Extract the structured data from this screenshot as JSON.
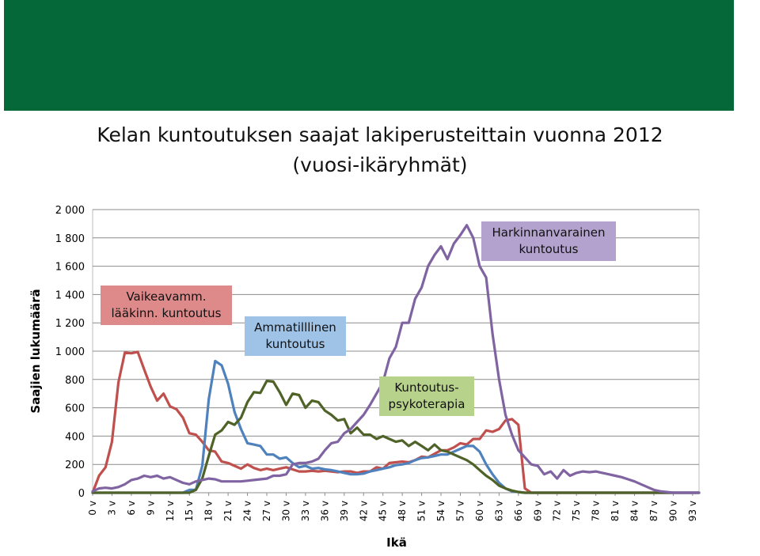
{
  "title": "Kelan kuntoutuksen saajat lakiperusteittain vuonna 2012  (vuosi-ikäryhmät)",
  "colors": {
    "banner": "#056839"
  },
  "chart_data": {
    "type": "line",
    "title": "Kelan kuntoutuksen saajat lakiperusteittain vuonna 2012  (vuosi-ikäryhmät)",
    "xlabel": "Ikä",
    "ylabel": "Saajien lukumäärä",
    "ylim": [
      0,
      2000
    ],
    "yticks": [
      0,
      200,
      400,
      600,
      800,
      1000,
      1200,
      1400,
      1600,
      1800,
      2000
    ],
    "ytick_labels": [
      "0",
      "200",
      "400",
      "600",
      "800",
      "1 000",
      "1 200",
      "1 400",
      "1 600",
      "1 800",
      "2 000"
    ],
    "x_range": [
      0,
      94
    ],
    "xtick_labels": [
      "0 v",
      "3 v",
      "6 v",
      "9 v",
      "12 v",
      "15 v",
      "18 v",
      "21 v",
      "24 v",
      "27 v",
      "30 v",
      "33 v",
      "36 v",
      "39 v",
      "42 v",
      "45 v",
      "48 v",
      "51 v",
      "54 v",
      "57 v",
      "60 v",
      "63 v",
      "66 v",
      "69 v",
      "72 v",
      "75 v",
      "78 v",
      "81 v",
      "84 v",
      "87 v",
      "90 v",
      "93 v"
    ],
    "grid": true,
    "legend": "inline labels",
    "series": [
      {
        "name": "Vaikeavamm. lääkinn. kuntoutus",
        "color": "#c0504d",
        "points": [
          [
            0,
            0
          ],
          [
            1,
            120
          ],
          [
            2,
            180
          ],
          [
            3,
            360
          ],
          [
            4,
            780
          ],
          [
            5,
            990
          ],
          [
            6,
            985
          ],
          [
            7,
            995
          ],
          [
            8,
            870
          ],
          [
            9,
            750
          ],
          [
            10,
            650
          ],
          [
            11,
            700
          ],
          [
            12,
            610
          ],
          [
            13,
            590
          ],
          [
            14,
            530
          ],
          [
            15,
            420
          ],
          [
            16,
            410
          ],
          [
            17,
            360
          ],
          [
            18,
            300
          ],
          [
            19,
            290
          ],
          [
            20,
            220
          ],
          [
            21,
            210
          ],
          [
            22,
            190
          ],
          [
            23,
            170
          ],
          [
            24,
            200
          ],
          [
            25,
            175
          ],
          [
            26,
            160
          ],
          [
            27,
            170
          ],
          [
            28,
            160
          ],
          [
            29,
            170
          ],
          [
            30,
            180
          ],
          [
            31,
            165
          ],
          [
            32,
            150
          ],
          [
            33,
            150
          ],
          [
            34,
            155
          ],
          [
            35,
            150
          ],
          [
            36,
            155
          ],
          [
            37,
            150
          ],
          [
            38,
            145
          ],
          [
            39,
            150
          ],
          [
            40,
            150
          ],
          [
            41,
            140
          ],
          [
            42,
            150
          ],
          [
            43,
            150
          ],
          [
            44,
            180
          ],
          [
            45,
            170
          ],
          [
            46,
            210
          ],
          [
            47,
            215
          ],
          [
            48,
            220
          ],
          [
            49,
            215
          ],
          [
            50,
            230
          ],
          [
            51,
            255
          ],
          [
            52,
            250
          ],
          [
            53,
            275
          ],
          [
            54,
            300
          ],
          [
            55,
            300
          ],
          [
            56,
            320
          ],
          [
            57,
            350
          ],
          [
            58,
            340
          ],
          [
            59,
            380
          ],
          [
            60,
            380
          ],
          [
            61,
            440
          ],
          [
            62,
            430
          ],
          [
            63,
            450
          ],
          [
            64,
            510
          ],
          [
            65,
            520
          ],
          [
            66,
            480
          ],
          [
            67,
            30
          ],
          [
            68,
            0
          ],
          [
            94,
            0
          ]
        ]
      },
      {
        "name": "Ammatilllinen kuntoutus",
        "color": "#4f81bd",
        "points": [
          [
            0,
            0
          ],
          [
            14,
            0
          ],
          [
            15,
            20
          ],
          [
            16,
            20
          ],
          [
            17,
            190
          ],
          [
            18,
            660
          ],
          [
            19,
            930
          ],
          [
            20,
            900
          ],
          [
            21,
            770
          ],
          [
            22,
            570
          ],
          [
            23,
            450
          ],
          [
            24,
            350
          ],
          [
            25,
            340
          ],
          [
            26,
            330
          ],
          [
            27,
            270
          ],
          [
            28,
            270
          ],
          [
            29,
            240
          ],
          [
            30,
            250
          ],
          [
            31,
            210
          ],
          [
            32,
            180
          ],
          [
            33,
            190
          ],
          [
            34,
            170
          ],
          [
            35,
            175
          ],
          [
            36,
            165
          ],
          [
            37,
            160
          ],
          [
            38,
            150
          ],
          [
            39,
            140
          ],
          [
            40,
            130
          ],
          [
            41,
            130
          ],
          [
            42,
            135
          ],
          [
            43,
            150
          ],
          [
            44,
            160
          ],
          [
            45,
            170
          ],
          [
            46,
            180
          ],
          [
            47,
            195
          ],
          [
            48,
            200
          ],
          [
            49,
            210
          ],
          [
            50,
            230
          ],
          [
            51,
            245
          ],
          [
            52,
            250
          ],
          [
            53,
            260
          ],
          [
            54,
            270
          ],
          [
            55,
            270
          ],
          [
            56,
            290
          ],
          [
            57,
            310
          ],
          [
            58,
            330
          ],
          [
            59,
            330
          ],
          [
            60,
            290
          ],
          [
            61,
            200
          ],
          [
            62,
            130
          ],
          [
            63,
            70
          ],
          [
            64,
            30
          ],
          [
            65,
            10
          ],
          [
            66,
            5
          ],
          [
            67,
            0
          ],
          [
            94,
            0
          ]
        ]
      },
      {
        "name": "Kuntoutus-psykoterapia",
        "color": "#4f6228",
        "points": [
          [
            0,
            0
          ],
          [
            15,
            0
          ],
          [
            16,
            20
          ],
          [
            17,
            100
          ],
          [
            18,
            260
          ],
          [
            19,
            410
          ],
          [
            20,
            440
          ],
          [
            21,
            500
          ],
          [
            22,
            480
          ],
          [
            23,
            530
          ],
          [
            24,
            640
          ],
          [
            25,
            710
          ],
          [
            26,
            705
          ],
          [
            27,
            790
          ],
          [
            28,
            785
          ],
          [
            29,
            710
          ],
          [
            30,
            620
          ],
          [
            31,
            700
          ],
          [
            32,
            690
          ],
          [
            33,
            600
          ],
          [
            34,
            650
          ],
          [
            35,
            640
          ],
          [
            36,
            580
          ],
          [
            37,
            550
          ],
          [
            38,
            510
          ],
          [
            39,
            520
          ],
          [
            40,
            420
          ],
          [
            41,
            460
          ],
          [
            42,
            410
          ],
          [
            43,
            410
          ],
          [
            44,
            380
          ],
          [
            45,
            400
          ],
          [
            46,
            380
          ],
          [
            47,
            360
          ],
          [
            48,
            370
          ],
          [
            49,
            330
          ],
          [
            50,
            360
          ],
          [
            51,
            330
          ],
          [
            52,
            300
          ],
          [
            53,
            340
          ],
          [
            54,
            300
          ],
          [
            55,
            290
          ],
          [
            56,
            270
          ],
          [
            57,
            250
          ],
          [
            58,
            230
          ],
          [
            59,
            200
          ],
          [
            60,
            160
          ],
          [
            61,
            120
          ],
          [
            62,
            90
          ],
          [
            63,
            50
          ],
          [
            64,
            30
          ],
          [
            65,
            15
          ],
          [
            66,
            5
          ],
          [
            67,
            0
          ],
          [
            94,
            0
          ]
        ]
      },
      {
        "name": "Harkinnanvarainen kuntoutus",
        "color": "#8064a2",
        "points": [
          [
            0,
            10
          ],
          [
            1,
            30
          ],
          [
            2,
            35
          ],
          [
            3,
            30
          ],
          [
            4,
            40
          ],
          [
            5,
            60
          ],
          [
            6,
            90
          ],
          [
            7,
            100
          ],
          [
            8,
            120
          ],
          [
            9,
            110
          ],
          [
            10,
            120
          ],
          [
            11,
            100
          ],
          [
            12,
            110
          ],
          [
            13,
            90
          ],
          [
            14,
            70
          ],
          [
            15,
            60
          ],
          [
            16,
            80
          ],
          [
            17,
            90
          ],
          [
            18,
            100
          ],
          [
            19,
            95
          ],
          [
            20,
            80
          ],
          [
            21,
            80
          ],
          [
            22,
            80
          ],
          [
            23,
            80
          ],
          [
            24,
            85
          ],
          [
            25,
            90
          ],
          [
            26,
            95
          ],
          [
            27,
            100
          ],
          [
            28,
            120
          ],
          [
            29,
            120
          ],
          [
            30,
            130
          ],
          [
            31,
            200
          ],
          [
            32,
            210
          ],
          [
            33,
            210
          ],
          [
            34,
            220
          ],
          [
            35,
            240
          ],
          [
            36,
            300
          ],
          [
            37,
            350
          ],
          [
            38,
            360
          ],
          [
            39,
            420
          ],
          [
            40,
            450
          ],
          [
            41,
            500
          ],
          [
            42,
            550
          ],
          [
            43,
            620
          ],
          [
            44,
            700
          ],
          [
            45,
            780
          ],
          [
            46,
            950
          ],
          [
            47,
            1030
          ],
          [
            48,
            1200
          ],
          [
            49,
            1200
          ],
          [
            50,
            1370
          ],
          [
            51,
            1450
          ],
          [
            52,
            1600
          ],
          [
            53,
            1680
          ],
          [
            54,
            1740
          ],
          [
            55,
            1650
          ],
          [
            56,
            1760
          ],
          [
            57,
            1820
          ],
          [
            58,
            1890
          ],
          [
            59,
            1800
          ],
          [
            60,
            1600
          ],
          [
            61,
            1520
          ],
          [
            62,
            1120
          ],
          [
            63,
            800
          ],
          [
            64,
            550
          ],
          [
            65,
            410
          ],
          [
            66,
            300
          ],
          [
            67,
            250
          ],
          [
            68,
            200
          ],
          [
            69,
            190
          ],
          [
            70,
            130
          ],
          [
            71,
            150
          ],
          [
            72,
            100
          ],
          [
            73,
            160
          ],
          [
            74,
            120
          ],
          [
            75,
            140
          ],
          [
            76,
            150
          ],
          [
            77,
            145
          ],
          [
            78,
            150
          ],
          [
            79,
            140
          ],
          [
            80,
            130
          ],
          [
            81,
            120
          ],
          [
            82,
            110
          ],
          [
            83,
            95
          ],
          [
            84,
            80
          ],
          [
            85,
            60
          ],
          [
            86,
            40
          ],
          [
            87,
            20
          ],
          [
            88,
            10
          ],
          [
            89,
            5
          ],
          [
            90,
            0
          ],
          [
            94,
            0
          ]
        ]
      }
    ]
  }
}
